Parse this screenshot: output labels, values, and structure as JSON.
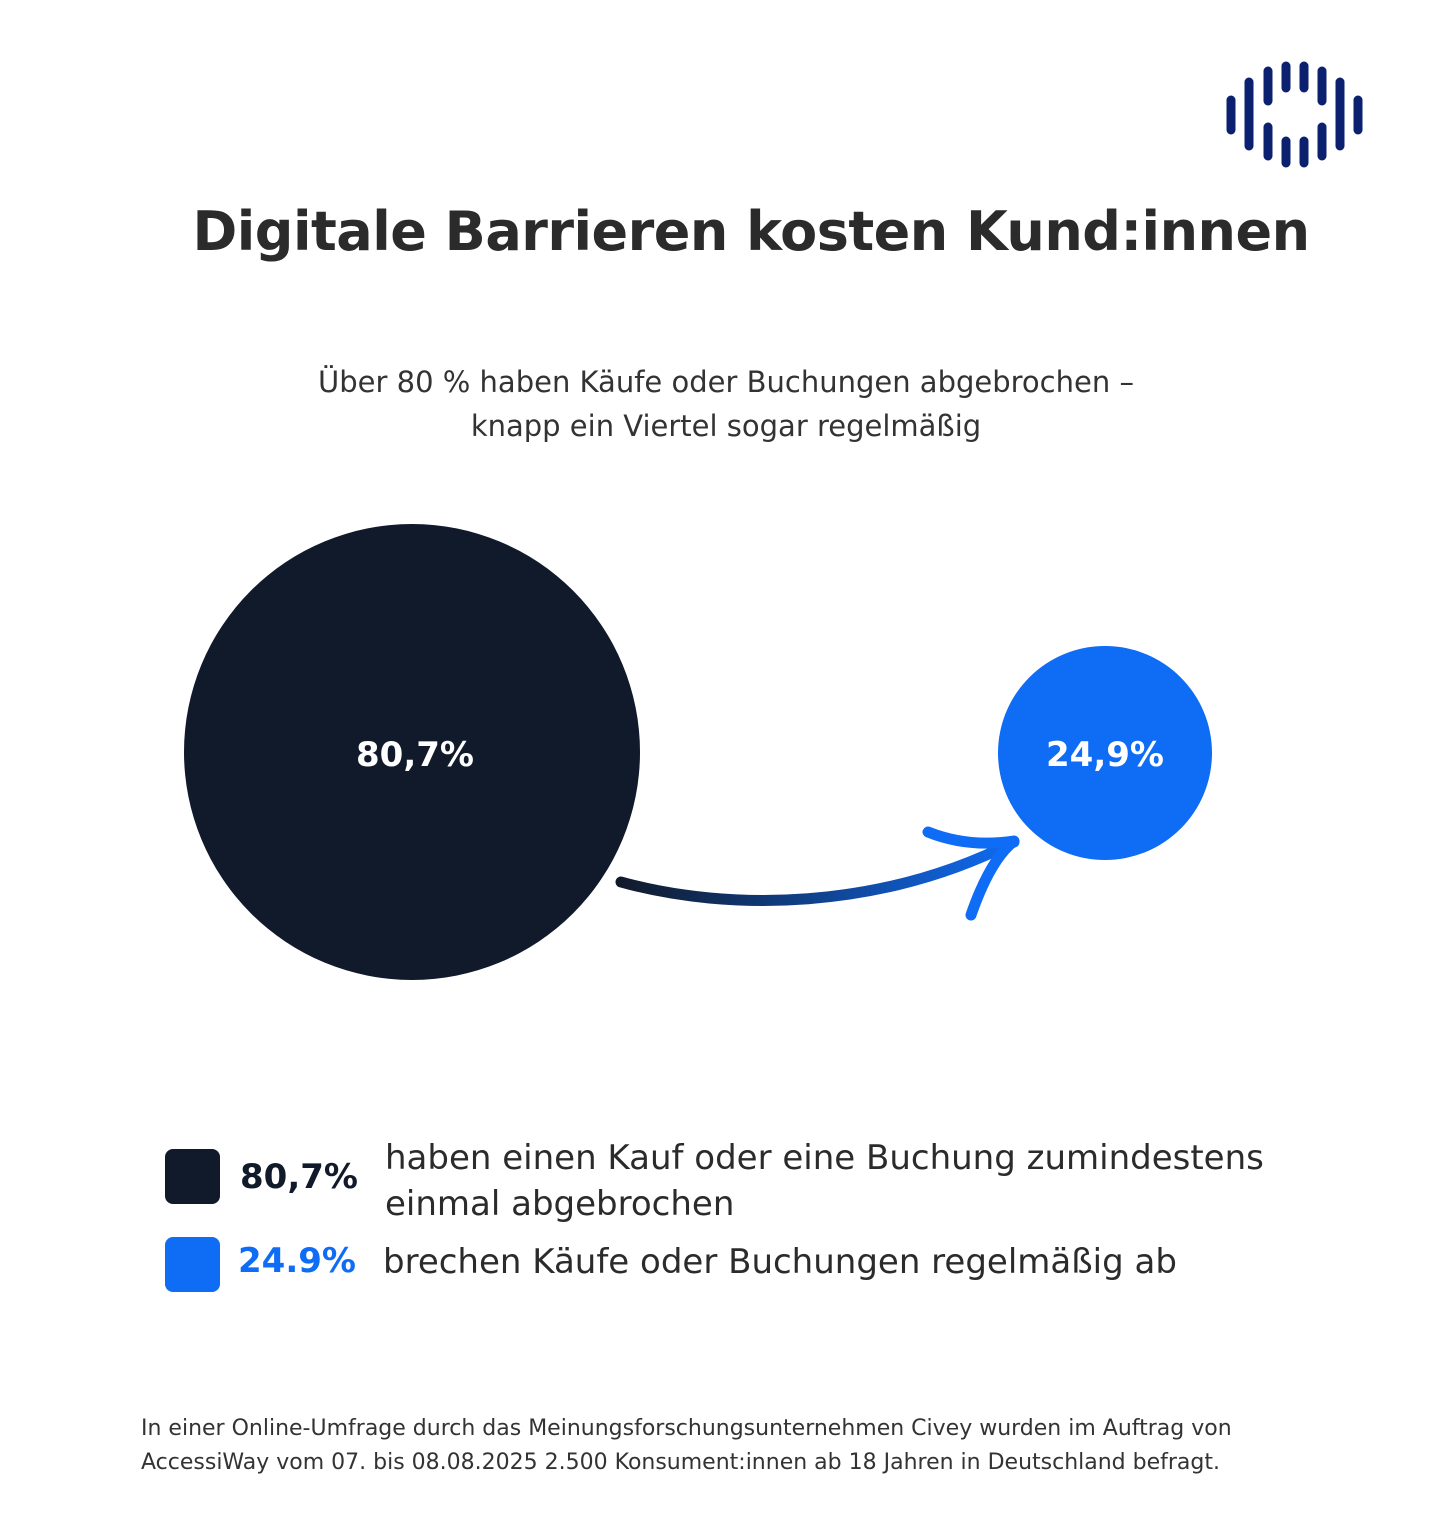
{
  "title": "Digitale Barrieren kosten Kund:innen",
  "subtitle_lines": [
    "Über 80 % haben Käufe oder Buchungen abgebrochen –",
    "knapp ein Viertel sogar regelmäßig"
  ],
  "logo": {
    "name": "bars-logo-icon",
    "color": "#0b2170"
  },
  "chart_data": {
    "type": "bubble",
    "series": [
      {
        "label": "80,7%",
        "value": 80.7,
        "color": "#111a2b"
      },
      {
        "label": "24,9%",
        "value": 24.9,
        "color": "#0f6cf5"
      }
    ],
    "annotation": "arrow from 80,7% to 24,9%"
  },
  "legend": [
    {
      "value": "80,7%",
      "text_lines": [
        "haben einen Kauf oder eine Buchung zumindestens",
        "einmal abgebrochen"
      ],
      "color": "#111a2b"
    },
    {
      "value": "24.9%",
      "text_lines": [
        "brechen Käufe oder Buchungen regelmäßig ab"
      ],
      "color": "#0f6cf5"
    }
  ],
  "footer_lines": [
    "In einer Online-Umfrage durch das Meinungsforschungsunternehmen Civey wurden im Auftrag von",
    "AccessiWay vom 07. bis 08.08.2025 2.500 Konsument:innen ab 18 Jahren in Deutschland befragt."
  ]
}
